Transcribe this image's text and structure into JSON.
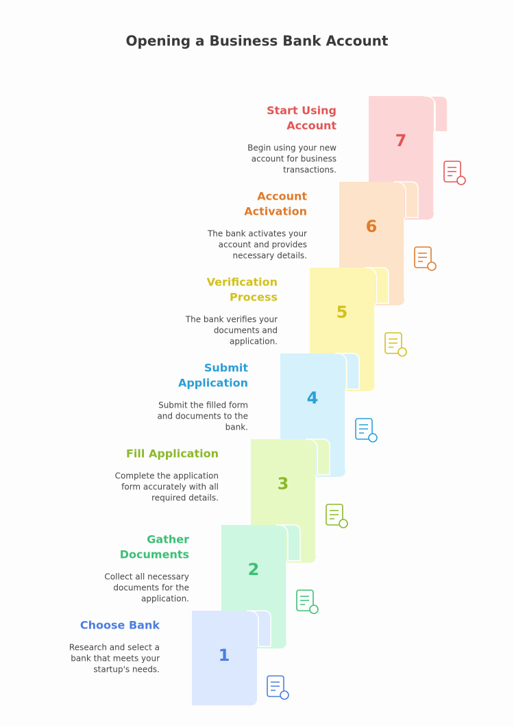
{
  "header": {
    "title": "Opening a Business Bank Account"
  },
  "steps": [
    {
      "number": "7",
      "title": [
        "Start Using",
        "Account"
      ],
      "description": [
        "Begin using your new",
        "account for business",
        "transactions."
      ],
      "color": "#e25555",
      "fill": "#fcd6d6"
    },
    {
      "number": "6",
      "title": [
        "Account",
        "Activation"
      ],
      "description": [
        "The bank activates your",
        "account and provides",
        "necessary details."
      ],
      "color": "#e07b2c",
      "fill": "#fde3c9"
    },
    {
      "number": "5",
      "title": [
        "Verification",
        "Process"
      ],
      "description": [
        "The bank verifies your",
        "documents and",
        "application."
      ],
      "color": "#d3c11c",
      "fill": "#fdf6b3"
    },
    {
      "number": "4",
      "title": [
        "Submit",
        "Application"
      ],
      "description": [
        "Submit the filled form",
        "and documents to the",
        "bank."
      ],
      "color": "#2b9fd6",
      "fill": "#d5f1fc"
    },
    {
      "number": "3",
      "title": [
        "Fill Application"
      ],
      "description": [
        "Complete the application",
        "form accurately with all",
        "required details."
      ],
      "color": "#8cb82c",
      "fill": "#e7f9c3"
    },
    {
      "number": "2",
      "title": [
        "Gather",
        "Documents"
      ],
      "description": [
        "Collect all necessary",
        "documents for the",
        "application."
      ],
      "color": "#3cbf76",
      "fill": "#cdf7e0"
    },
    {
      "number": "1",
      "title": [
        "Choose Bank"
      ],
      "description": [
        "Research and select a",
        "bank that meets your",
        "startup's needs."
      ],
      "color": "#4b7ee0",
      "fill": "#dce8fd"
    }
  ]
}
